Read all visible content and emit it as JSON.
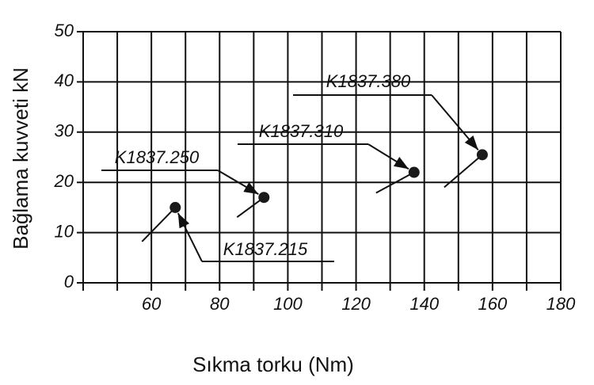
{
  "chart_data": {
    "type": "scatter",
    "x_label": "Sıkma torku (Nm)",
    "y_label": "Bağlama kuvveti kN",
    "xlim": [
      40,
      180
    ],
    "ylim": [
      0,
      50
    ],
    "xticks": [
      60,
      80,
      100,
      120,
      140,
      160,
      180
    ],
    "x_minor_grid": [
      40,
      50,
      70,
      90,
      110,
      130,
      150,
      170
    ],
    "yticks": [
      0,
      10,
      20,
      30,
      40,
      50
    ],
    "grid": true,
    "color": "#1a1a1a",
    "x": [
      67,
      93,
      137,
      157
    ],
    "values": [
      15,
      17,
      22,
      25.5
    ],
    "point_labels": [
      "K1837.215",
      "K1837.250",
      "K1837.310",
      "K1837.380"
    ]
  }
}
